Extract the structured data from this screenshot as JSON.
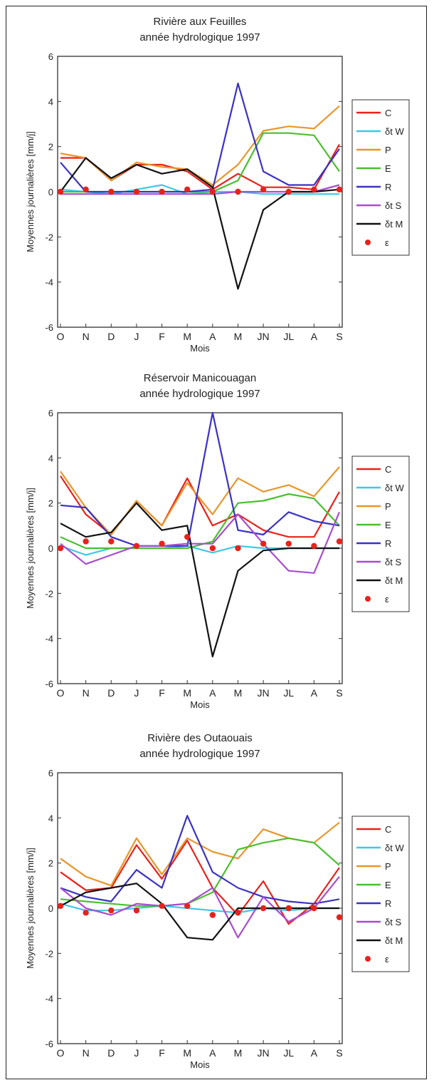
{
  "chart_data": [
    {
      "type": "line",
      "title": "Rivière aux Feuilles",
      "subtitle": "année hydrologique 1997",
      "xlabel": "Mois",
      "ylabel": "Moyennes journalières [mm/j]",
      "categories": [
        "O",
        "N",
        "D",
        "J",
        "F",
        "M",
        "A",
        "M",
        "JN",
        "JL",
        "A",
        "S"
      ],
      "ylim": [
        -6,
        6
      ],
      "yticks": [
        -6,
        -4,
        -2,
        0,
        2,
        4,
        6
      ],
      "legend_position": "right",
      "series": [
        {
          "name": "C",
          "label": "C",
          "color": "#e8221b",
          "values": [
            1.5,
            1.5,
            0.5,
            1.2,
            1.2,
            0.9,
            0.1,
            0.8,
            0.2,
            0.2,
            0.1,
            2.1
          ]
        },
        {
          "name": "δ_t W",
          "label": "δt W",
          "color": "#3ec8e8",
          "values": [
            0.1,
            0.0,
            -0.1,
            0.1,
            0.3,
            -0.1,
            0.0,
            0.0,
            -0.1,
            -0.1,
            -0.1,
            -0.1
          ]
        },
        {
          "name": "P",
          "label": "P",
          "color": "#e8962a",
          "values": [
            1.7,
            1.5,
            0.5,
            1.3,
            1.1,
            1.0,
            0.3,
            1.2,
            2.7,
            2.9,
            2.8,
            3.8
          ]
        },
        {
          "name": "E",
          "label": "E",
          "color": "#4bbf2f",
          "values": [
            0.0,
            0.0,
            0.0,
            0.0,
            0.0,
            0.0,
            0.0,
            0.5,
            2.6,
            2.6,
            2.5,
            0.9
          ]
        },
        {
          "name": "R",
          "label": "R",
          "color": "#3a32c4",
          "values": [
            1.3,
            0.0,
            0.0,
            0.0,
            0.0,
            0.0,
            0.1,
            4.8,
            0.9,
            0.3,
            0.3,
            1.9
          ]
        },
        {
          "name": "δ_t S",
          "label": "δt S",
          "color": "#a84ccf",
          "values": [
            -0.1,
            -0.1,
            -0.1,
            -0.1,
            -0.1,
            -0.1,
            -0.1,
            0.0,
            0.0,
            0.0,
            0.0,
            0.3
          ]
        },
        {
          "name": "δ_t M",
          "label": "δt M",
          "color": "#111111",
          "values": [
            0.0,
            1.5,
            0.6,
            1.2,
            0.8,
            1.0,
            0.2,
            -4.3,
            -0.8,
            0.0,
            0.0,
            0.1
          ]
        },
        {
          "name": "ε",
          "label": "ε",
          "color": "#e8221b",
          "marker": true,
          "values": [
            0.0,
            0.1,
            0.0,
            0.0,
            0.0,
            0.1,
            0.0,
            0.0,
            0.1,
            0.0,
            0.1,
            0.1
          ]
        }
      ]
    },
    {
      "type": "line",
      "title": "Réservoir Manicouagan",
      "subtitle": "année hydrologique 1997",
      "xlabel": "Mois",
      "ylabel": "Moyennes journalières [mm/j]",
      "categories": [
        "O",
        "N",
        "D",
        "J",
        "F",
        "M",
        "A",
        "M",
        "JN",
        "JL",
        "A",
        "S"
      ],
      "ylim": [
        -6,
        6
      ],
      "yticks": [
        -6,
        -4,
        -2,
        0,
        2,
        4,
        6
      ],
      "legend_position": "right",
      "series": [
        {
          "name": "C",
          "label": "C",
          "color": "#e8221b",
          "values": [
            3.2,
            1.5,
            0.6,
            2.1,
            1.0,
            3.1,
            1.0,
            1.5,
            0.8,
            0.5,
            0.5,
            2.5
          ]
        },
        {
          "name": "δ_t W",
          "label": "δt W",
          "color": "#3ec8e8",
          "values": [
            0.1,
            -0.3,
            0.0,
            0.0,
            0.0,
            0.1,
            -0.2,
            0.1,
            0.0,
            0.0,
            0.0,
            0.0
          ]
        },
        {
          "name": "P",
          "label": "P",
          "color": "#e8962a",
          "values": [
            3.4,
            1.8,
            0.6,
            2.1,
            1.0,
            2.9,
            1.5,
            3.1,
            2.5,
            2.8,
            2.3,
            3.6
          ]
        },
        {
          "name": "E",
          "label": "E",
          "color": "#4bbf2f",
          "values": [
            0.5,
            0.0,
            0.0,
            0.0,
            0.0,
            0.0,
            0.3,
            2.0,
            2.1,
            2.4,
            2.2,
            1.0
          ]
        },
        {
          "name": "R",
          "label": "R",
          "color": "#3a32c4",
          "values": [
            1.9,
            1.8,
            0.5,
            0.1,
            0.1,
            0.1,
            6.0,
            0.8,
            0.6,
            1.6,
            1.2,
            1.0
          ]
        },
        {
          "name": "δ_t S",
          "label": "δt S",
          "color": "#a84ccf",
          "values": [
            0.2,
            -0.7,
            -0.3,
            0.1,
            0.1,
            0.2,
            0.2,
            1.5,
            0.2,
            -1.0,
            -1.1,
            1.6
          ]
        },
        {
          "name": "δ_t M",
          "label": "δt M",
          "color": "#111111",
          "values": [
            1.1,
            0.5,
            0.7,
            2.0,
            0.8,
            1.0,
            -4.8,
            -1.0,
            -0.1,
            0.0,
            0.0,
            0.0
          ]
        },
        {
          "name": "ε",
          "label": "ε",
          "color": "#e8221b",
          "marker": true,
          "values": [
            0.0,
            0.3,
            0.3,
            0.1,
            0.2,
            0.5,
            0.0,
            0.0,
            0.2,
            0.2,
            0.1,
            0.3
          ]
        }
      ]
    },
    {
      "type": "line",
      "title": "Rivière des Outaouais",
      "subtitle": "année hydrologique 1997",
      "xlabel": "Mois",
      "ylabel": "Moyennes journalières [mm/j]",
      "categories": [
        "O",
        "N",
        "D",
        "J",
        "F",
        "M",
        "A",
        "M",
        "JN",
        "JL",
        "A",
        "S"
      ],
      "ylim": [
        -6,
        6
      ],
      "yticks": [
        -6,
        -4,
        -2,
        0,
        2,
        4,
        6
      ],
      "legend_position": "right",
      "series": [
        {
          "name": "C",
          "label": "C",
          "color": "#e8221b",
          "values": [
            1.6,
            0.8,
            0.9,
            2.8,
            1.3,
            3.0,
            0.9,
            -0.3,
            1.2,
            -0.7,
            0.2,
            1.8
          ]
        },
        {
          "name": "δ_t W",
          "label": "δt W",
          "color": "#3ec8e8",
          "values": [
            0.2,
            -0.1,
            -0.1,
            0.0,
            0.1,
            0.0,
            -0.1,
            -0.2,
            0.0,
            -0.1,
            0.0,
            0.0
          ]
        },
        {
          "name": "P",
          "label": "P",
          "color": "#e8962a",
          "values": [
            2.2,
            1.4,
            1.0,
            3.1,
            1.5,
            3.1,
            2.5,
            2.2,
            3.5,
            3.1,
            2.9,
            3.8
          ]
        },
        {
          "name": "E",
          "label": "E",
          "color": "#4bbf2f",
          "values": [
            0.4,
            0.3,
            0.2,
            0.1,
            0.1,
            0.2,
            0.7,
            2.6,
            2.9,
            3.1,
            2.9,
            1.9
          ]
        },
        {
          "name": "R",
          "label": "R",
          "color": "#3a32c4",
          "values": [
            0.9,
            0.5,
            0.3,
            1.7,
            0.9,
            4.1,
            1.6,
            0.9,
            0.5,
            0.3,
            0.2,
            0.4
          ]
        },
        {
          "name": "δ_t S",
          "label": "δt S",
          "color": "#a84ccf",
          "values": [
            0.9,
            0.0,
            -0.3,
            0.2,
            0.1,
            0.2,
            0.9,
            -1.3,
            0.5,
            -0.6,
            0.0,
            1.4
          ]
        },
        {
          "name": "δ_t M",
          "label": "δt M",
          "color": "#111111",
          "values": [
            0.1,
            0.7,
            0.9,
            1.1,
            0.2,
            -1.3,
            -1.4,
            0.0,
            0.0,
            0.0,
            0.0,
            0.0
          ]
        },
        {
          "name": "ε",
          "label": "ε",
          "color": "#e8221b",
          "marker": true,
          "values": [
            0.1,
            -0.2,
            -0.1,
            -0.1,
            0.1,
            0.1,
            -0.3,
            -0.2,
            0.0,
            0.0,
            0.0,
            -0.4
          ]
        }
      ]
    }
  ]
}
